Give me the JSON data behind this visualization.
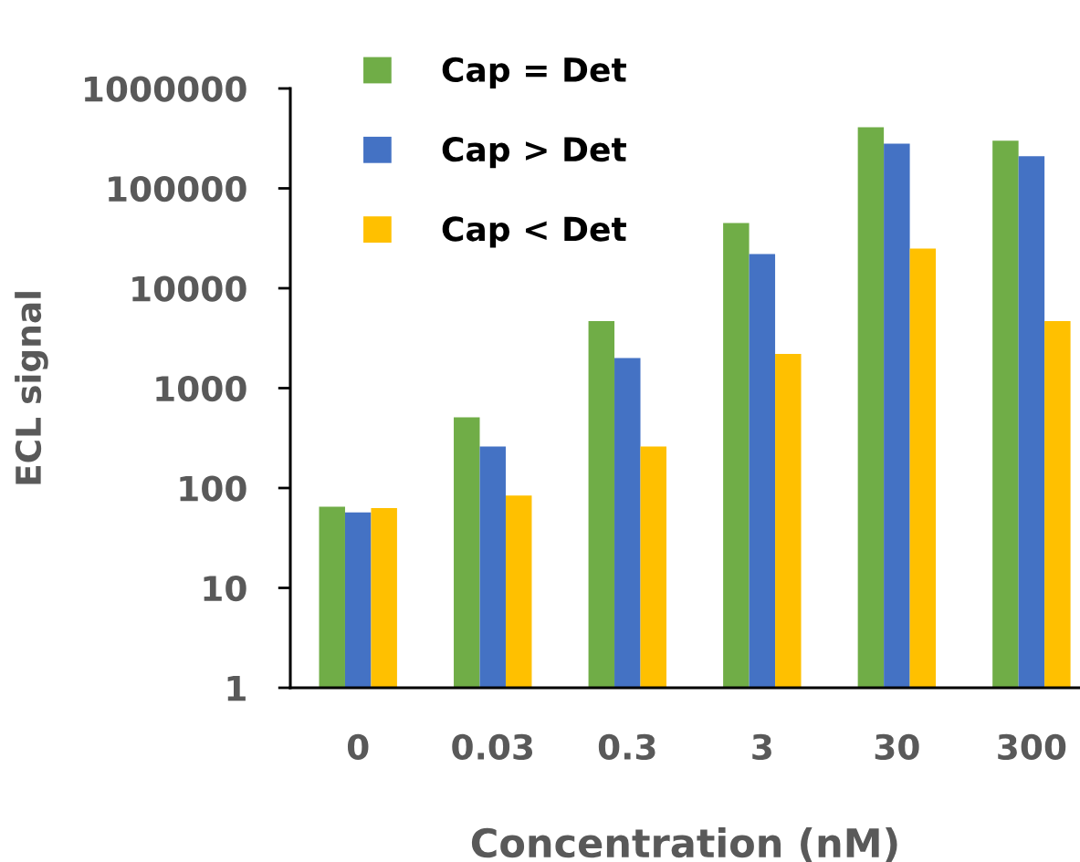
{
  "chart_data": {
    "type": "bar",
    "xlabel": "Concentration (nM)",
    "ylabel": "ECL signal",
    "categories": [
      "0",
      "0.03",
      "0.3",
      "3",
      "30",
      "300"
    ],
    "series": [
      {
        "name": "Cap = Det",
        "color": "#70ad47",
        "values": [
          65,
          510,
          4700,
          45000,
          410000,
          300000
        ]
      },
      {
        "name": "Cap > Det",
        "color": "#4472c4",
        "values": [
          57,
          260,
          2000,
          22000,
          280000,
          210000
        ]
      },
      {
        "name": "Cap < Det",
        "color": "#ffc000",
        "values": [
          63,
          84,
          260,
          2200,
          25000,
          4700
        ]
      }
    ],
    "log": true,
    "ylim": [
      1,
      1000000
    ],
    "yticks": [
      1,
      10,
      100,
      1000,
      10000,
      100000,
      1000000
    ],
    "legend": "top left"
  }
}
